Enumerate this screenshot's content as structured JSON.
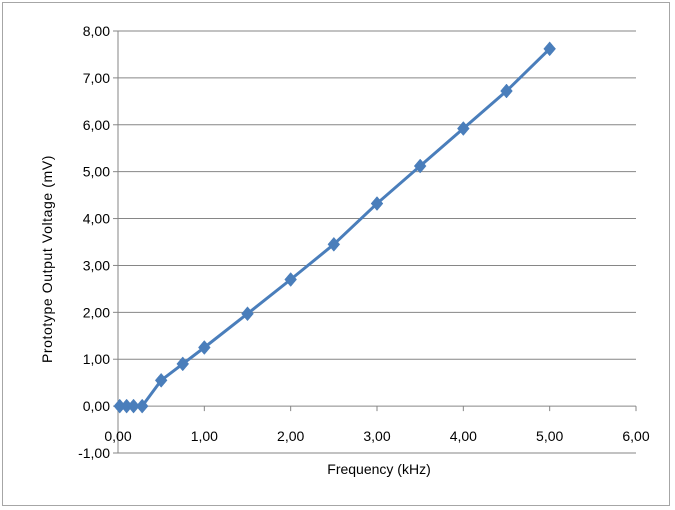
{
  "chart_data": {
    "type": "line",
    "title": "",
    "xlabel": "Frequency (kHz)",
    "ylabel": "Prototype Output Voltage (mV)",
    "xlim": [
      0,
      6
    ],
    "ylim": [
      -1,
      8
    ],
    "x_ticks": [
      "0,00",
      "1,00",
      "2,00",
      "3,00",
      "4,00",
      "5,00",
      "6,00"
    ],
    "y_ticks": [
      "-1,00",
      "0,00",
      "1,00",
      "2,00",
      "3,00",
      "4,00",
      "5,00",
      "6,00",
      "7,00",
      "8,00"
    ],
    "grid": "horizontal major gridlines",
    "legend": "none",
    "series": [
      {
        "color": "#4a7ebb",
        "marker": "diamond",
        "x": [
          0.02,
          0.1,
          0.18,
          0.28,
          0.5,
          0.75,
          1.0,
          1.5,
          2.0,
          2.5,
          3.0,
          3.5,
          4.0,
          4.5,
          5.0
        ],
        "y": [
          0.0,
          0.0,
          0.0,
          0.0,
          0.55,
          0.9,
          1.25,
          1.97,
          2.7,
          3.45,
          4.32,
          5.12,
          5.92,
          6.72,
          7.62
        ]
      }
    ]
  }
}
